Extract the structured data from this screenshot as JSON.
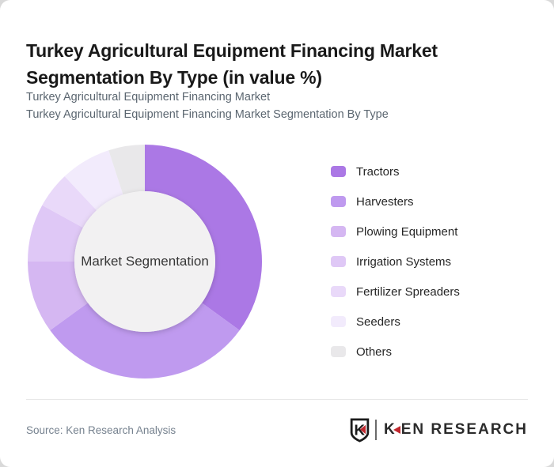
{
  "header": {
    "title": "Turkey Agricultural Equipment Financing Market Segmentation By Type (in value %)",
    "subtitle_line1": "Turkey Agricultural Equipment Financing Market",
    "subtitle_line2": "Turkey Agricultural Equipment Financing Market Segmentation By Type"
  },
  "chart_data": {
    "type": "pie",
    "variant": "donut",
    "title": "Turkey Agricultural Equipment Financing Market Segmentation By Type (in value %)",
    "unit": "value %",
    "center_label": "Market Segmentation",
    "legend_position": "right",
    "start_angle_deg": 0,
    "direction": "clockwise",
    "hole_color": "#f2f1f2",
    "segments": [
      {
        "label": "Tractors",
        "value": 35,
        "color": "#ab78e5"
      },
      {
        "label": "Harvesters",
        "value": 30,
        "color": "#bf9aef"
      },
      {
        "label": "Plowing Equipment",
        "value": 10,
        "color": "#d5b7f2"
      },
      {
        "label": "Irrigation Systems",
        "value": 8,
        "color": "#dfc8f6"
      },
      {
        "label": "Fertilizer Spreaders",
        "value": 5,
        "color": "#e9d9f9"
      },
      {
        "label": "Seeders",
        "value": 7,
        "color": "#f2ebfc"
      },
      {
        "label": "Others",
        "value": 5,
        "color": "#e9e8ea"
      }
    ]
  },
  "footer": {
    "source": "Source: Ken Research Analysis",
    "logo": {
      "mark_letter": "K",
      "text": "KEN RESEARCH",
      "accent_color": "#c0272d"
    }
  }
}
